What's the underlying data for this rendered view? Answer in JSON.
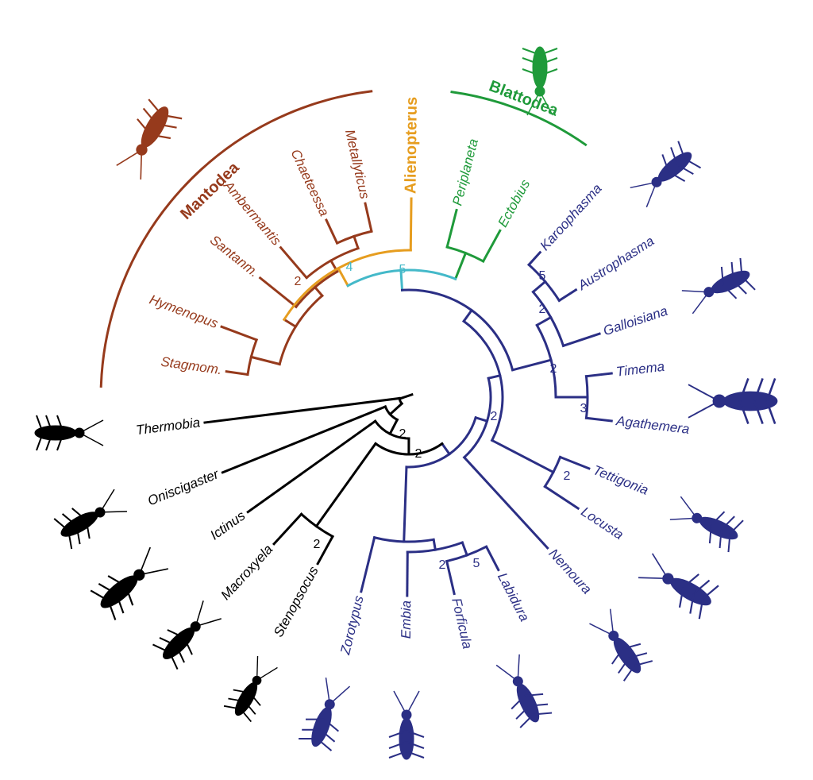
{
  "taxa": [
    "Stagmom.",
    "Hymenopus",
    "Santanm.",
    "Ambermantis",
    "Chaeteessa",
    "Metallyticus",
    "Periplaneta",
    "Ectobius",
    "Karoophasma",
    "Austrophasma",
    "Galloisiana",
    "Timema",
    "Agathemera",
    "Tettigonia",
    "Locusta",
    "Nemoura",
    "Labidura",
    "Forficula",
    "Embia",
    "Zorotypus",
    "Stenopsocus",
    "Macroxyela",
    "Ictinus",
    "Oniscigaster",
    "Thermobia"
  ],
  "clades": [
    "Mantodea",
    "Alienopterus",
    "Blattodea"
  ],
  "support": [
    2,
    4,
    5,
    5,
    2,
    2,
    3,
    2,
    2,
    2,
    5,
    2,
    2,
    2
  ]
}
